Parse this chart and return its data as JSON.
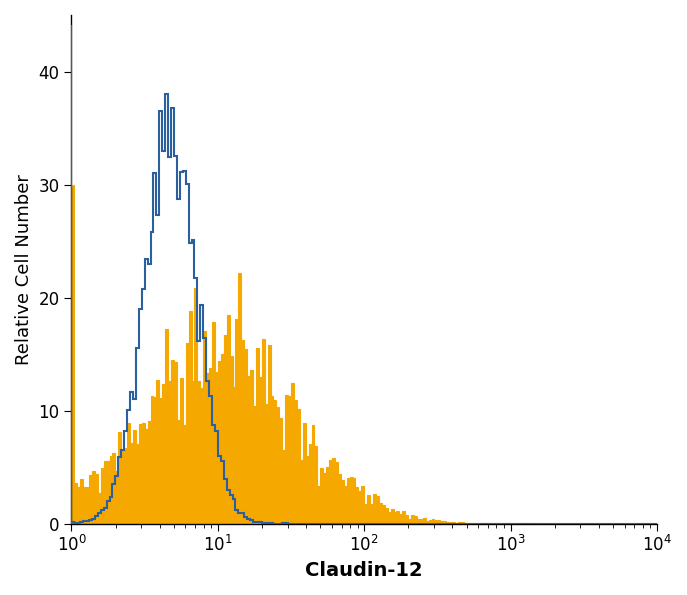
{
  "xlabel": "Claudin-12",
  "ylabel": "Relative Cell Number",
  "xlim": [
    1,
    10000
  ],
  "ylim": [
    0,
    45
  ],
  "yticks": [
    0,
    10,
    20,
    30,
    40
  ],
  "blue_color": "#2B5F9E",
  "orange_color": "#F5A800",
  "background_color": "#ffffff",
  "xlabel_fontsize": 14,
  "ylabel_fontsize": 13,
  "tick_fontsize": 12,
  "blue_peak_height": 38,
  "orange_peak_height": 30,
  "n_bins": 200,
  "blue_spike_height": 44,
  "blue_log_mean": 0.68,
  "blue_log_std": 0.18,
  "orange_log_mean": 1.0,
  "orange_log_std": 0.52
}
